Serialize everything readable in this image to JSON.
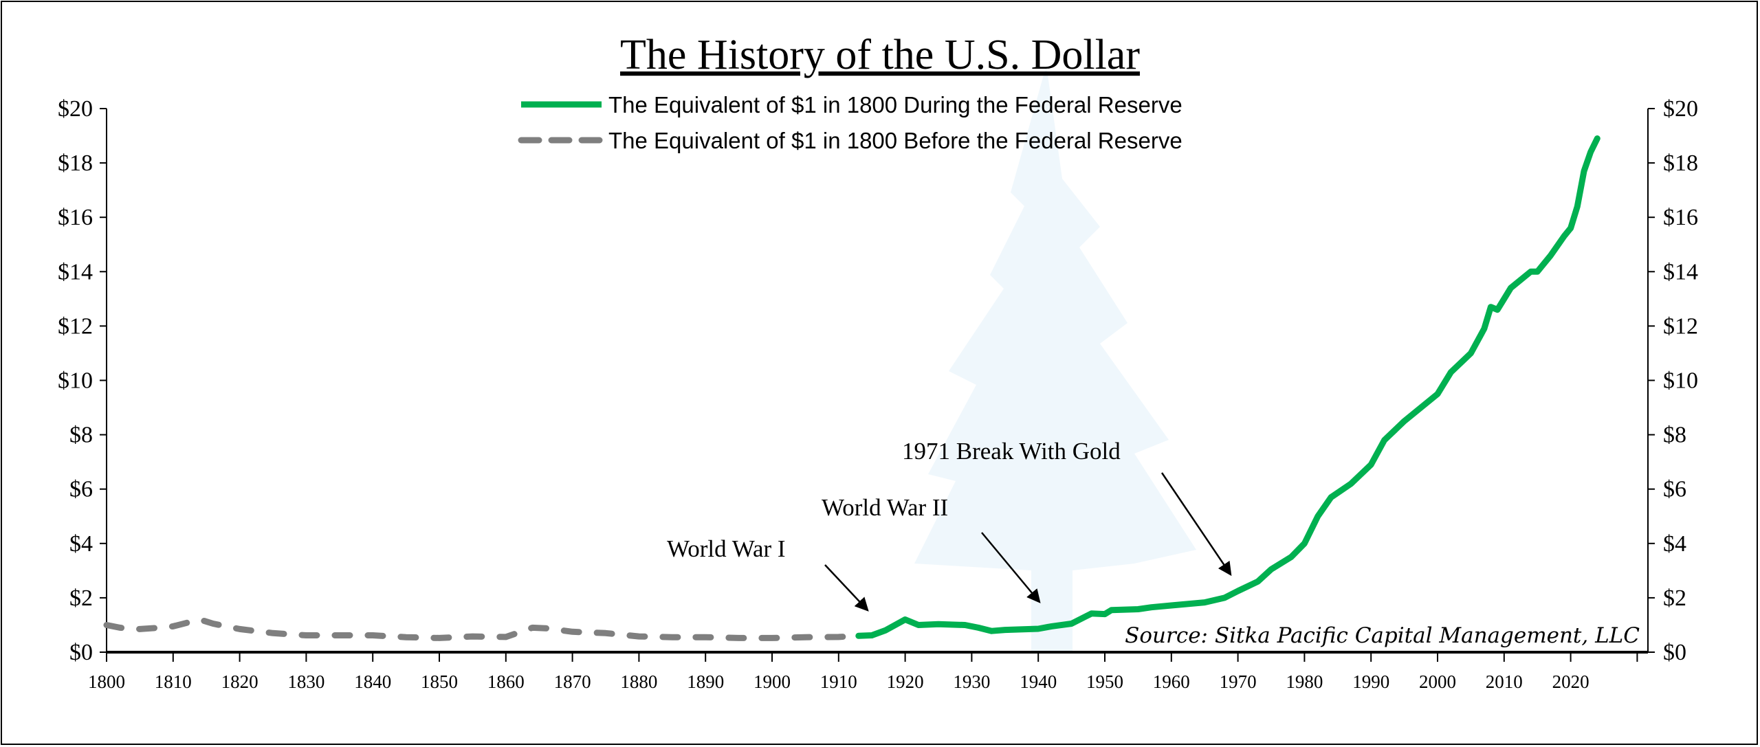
{
  "chart_data": {
    "type": "line",
    "title": "The History of the U.S. Dollar",
    "xlabel": "",
    "ylabel": "",
    "xlim": [
      1800,
      2031
    ],
    "ylim": [
      0,
      20
    ],
    "x_ticks": [
      "1800",
      "1810",
      "1820",
      "1830",
      "1840",
      "1850",
      "1860",
      "1870",
      "1880",
      "1890",
      "1900",
      "1910",
      "1920",
      "1930",
      "1940",
      "1950",
      "1960",
      "1970",
      "1980",
      "1990",
      "2000",
      "2010",
      "2020"
    ],
    "y_ticks": [
      "$0",
      "$2",
      "$4",
      "$6",
      "$8",
      "$10",
      "$12",
      "$14",
      "$16",
      "$18",
      "$20"
    ],
    "y_tick_values": [
      0,
      2,
      4,
      6,
      8,
      10,
      12,
      14,
      16,
      18,
      20
    ],
    "grid": false,
    "legend_position": "top-center",
    "series": [
      {
        "name": "The Equivalent of $1 in 1800 During the Federal Reserve",
        "color": "#00b050",
        "style": "solid",
        "x": [
          1913,
          1915,
          1917,
          1920,
          1922,
          1925,
          1929,
          1931,
          1933,
          1935,
          1940,
          1942,
          1945,
          1947,
          1948,
          1950,
          1951,
          1955,
          1957,
          1960,
          1965,
          1968,
          1970,
          1973,
          1975,
          1978,
          1980,
          1982,
          1984,
          1987,
          1990,
          1992,
          1995,
          2000,
          2002,
          2005,
          2007,
          2008,
          2009,
          2010,
          2011,
          2014,
          2015,
          2017,
          2019,
          2020,
          2021,
          2022,
          2023,
          2024
        ],
        "y": [
          0.6,
          0.62,
          0.8,
          1.2,
          1.0,
          1.03,
          1.0,
          0.9,
          0.78,
          0.82,
          0.86,
          0.95,
          1.05,
          1.3,
          1.42,
          1.4,
          1.55,
          1.58,
          1.65,
          1.72,
          1.83,
          2.0,
          2.25,
          2.6,
          3.05,
          3.5,
          4.0,
          5.0,
          5.7,
          6.2,
          6.9,
          7.8,
          8.5,
          9.5,
          10.3,
          11.0,
          11.9,
          12.7,
          12.6,
          13.0,
          13.4,
          14.0,
          14.0,
          14.6,
          15.3,
          15.6,
          16.4,
          17.7,
          18.4,
          18.9
        ]
      },
      {
        "name": "The Equivalent of $1 in 1800 Before the Federal Reserve",
        "color": "#7f7f7f",
        "style": "dashed",
        "x": [
          1800,
          1802,
          1805,
          1808,
          1810,
          1814,
          1816,
          1820,
          1825,
          1830,
          1835,
          1840,
          1845,
          1850,
          1855,
          1860,
          1864,
          1866,
          1870,
          1875,
          1880,
          1885,
          1890,
          1895,
          1900,
          1905,
          1910,
          1913
        ],
        "y": [
          1.0,
          0.9,
          0.85,
          0.9,
          0.95,
          1.2,
          1.05,
          0.85,
          0.7,
          0.62,
          0.62,
          0.62,
          0.55,
          0.52,
          0.58,
          0.56,
          0.9,
          0.88,
          0.75,
          0.7,
          0.58,
          0.55,
          0.55,
          0.52,
          0.52,
          0.55,
          0.56,
          0.6
        ]
      }
    ],
    "annotations": [
      {
        "text": "World War I",
        "x": 1914
      },
      {
        "text": "World War II",
        "x": 1940
      },
      {
        "text": "1971 Break With Gold",
        "x": 1969
      }
    ],
    "source": "Source: Sitka Pacific Capital Management, LLC"
  }
}
